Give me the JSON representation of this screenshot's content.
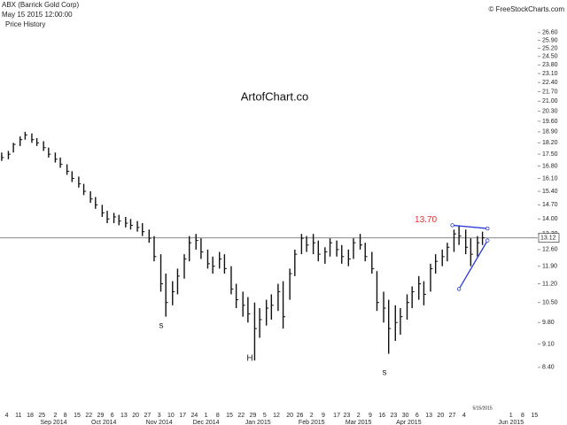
{
  "chart_data": {
    "type": "ohlc",
    "title": "ABX (Barrick Gold Corp)",
    "subtitle": "May 15 2015 12:00:00",
    "panel_label": "Price History",
    "copyright": "© FreeStockCharts.com",
    "watermark": "ArtofChart.co",
    "date_label": "5/15/2015",
    "color": "#111111",
    "log_scale": true,
    "x": [
      "2014-08-01",
      "2014-08-05",
      "2014-08-08",
      "2014-08-12",
      "2014-08-15",
      "2014-08-19",
      "2014-08-22",
      "2014-08-26",
      "2014-08-29",
      "2014-09-02",
      "2014-09-05",
      "2014-09-09",
      "2014-09-12",
      "2014-09-16",
      "2014-09-19",
      "2014-09-23",
      "2014-09-26",
      "2014-09-30",
      "2014-10-03",
      "2014-10-07",
      "2014-10-10",
      "2014-10-14",
      "2014-10-17",
      "2014-10-21",
      "2014-10-24",
      "2014-10-28",
      "2014-10-31",
      "2014-11-04",
      "2014-11-07",
      "2014-11-11",
      "2014-11-14",
      "2014-11-18",
      "2014-11-21",
      "2014-11-25",
      "2014-11-28",
      "2014-12-02",
      "2014-12-05",
      "2014-12-09",
      "2014-12-12",
      "2014-12-16",
      "2014-12-19",
      "2014-12-23",
      "2014-12-26",
      "2014-12-30",
      "2015-01-02",
      "2015-01-06",
      "2015-01-09",
      "2015-01-13",
      "2015-01-16",
      "2015-01-20",
      "2015-01-23",
      "2015-01-27",
      "2015-01-30",
      "2015-02-03",
      "2015-02-06",
      "2015-02-10",
      "2015-02-13",
      "2015-02-17",
      "2015-02-20",
      "2015-02-24",
      "2015-02-27",
      "2015-03-03",
      "2015-03-06",
      "2015-03-10",
      "2015-03-13",
      "2015-03-17",
      "2015-03-20",
      "2015-03-24",
      "2015-03-27",
      "2015-03-31",
      "2015-04-03",
      "2015-04-07",
      "2015-04-10",
      "2015-04-14",
      "2015-04-17",
      "2015-04-21",
      "2015-04-24",
      "2015-04-28",
      "2015-05-01",
      "2015-05-05",
      "2015-05-08",
      "2015-05-12",
      "2015-05-15"
    ],
    "high": [
      17.6,
      17.7,
      18.2,
      18.6,
      18.9,
      18.8,
      18.5,
      18.3,
      17.9,
      17.6,
      17.3,
      16.9,
      16.5,
      16.2,
      15.8,
      15.4,
      15.1,
      14.7,
      14.4,
      14.3,
      14.2,
      14.1,
      14.0,
      13.9,
      13.8,
      13.5,
      13.2,
      12.4,
      11.6,
      11.3,
      11.8,
      12.4,
      13.2,
      13.3,
      13.1,
      12.6,
      12.3,
      12.5,
      12.4,
      11.9,
      11.2,
      10.9,
      10.7,
      10.5,
      10.3,
      10.6,
      10.8,
      11.2,
      11.3,
      11.8,
      12.6,
      13.3,
      13.2,
      13.3,
      13.0,
      12.7,
      13.1,
      13.0,
      12.8,
      12.6,
      13.1,
      13.3,
      12.9,
      12.5,
      11.7,
      10.9,
      10.6,
      10.4,
      10.3,
      10.8,
      11.1,
      11.5,
      11.3,
      12.0,
      12.4,
      12.6,
      12.9,
      13.5,
      13.7,
      13.5,
      13.1,
      13.2,
      13.4
    ],
    "low": [
      17.1,
      17.2,
      17.6,
      18.0,
      18.4,
      18.2,
      18.0,
      17.7,
      17.3,
      17.0,
      16.7,
      16.3,
      15.9,
      15.6,
      15.2,
      14.8,
      14.5,
      14.1,
      13.8,
      13.8,
      13.7,
      13.6,
      13.5,
      13.4,
      13.2,
      12.9,
      12.1,
      10.9,
      10.0,
      10.4,
      10.8,
      11.4,
      12.1,
      12.6,
      12.2,
      11.8,
      11.6,
      11.8,
      11.6,
      10.8,
      10.3,
      10.0,
      9.8,
      8.6,
      9.3,
      9.7,
      9.9,
      10.2,
      9.6,
      10.6,
      11.5,
      12.4,
      12.5,
      12.4,
      12.1,
      12.0,
      12.3,
      12.3,
      12.0,
      11.9,
      12.2,
      12.6,
      12.1,
      11.6,
      10.2,
      9.8,
      8.8,
      9.2,
      9.4,
      9.9,
      10.3,
      10.6,
      10.4,
      10.9,
      11.6,
      11.9,
      12.1,
      12.5,
      12.8,
      12.4,
      11.9,
      12.3,
      12.8
    ],
    "close": [
      17.3,
      17.5,
      18.1,
      18.4,
      18.7,
      18.4,
      18.2,
      17.9,
      17.5,
      17.2,
      16.9,
      16.5,
      16.1,
      15.8,
      15.4,
      15.0,
      14.7,
      14.3,
      14.0,
      14.1,
      13.9,
      13.8,
      13.7,
      13.6,
      13.4,
      13.1,
      12.3,
      11.2,
      10.5,
      10.9,
      11.5,
      12.2,
      12.9,
      13.0,
      12.5,
      12.0,
      11.9,
      12.2,
      11.8,
      11.0,
      10.6,
      10.4,
      10.1,
      9.6,
      9.9,
      10.3,
      10.4,
      10.9,
      10.0,
      11.6,
      12.4,
      13.1,
      12.8,
      12.9,
      12.4,
      12.5,
      12.9,
      12.6,
      12.3,
      12.2,
      12.9,
      12.8,
      12.3,
      11.8,
      10.5,
      10.3,
      9.6,
      9.8,
      10.0,
      10.5,
      10.9,
      11.2,
      10.8,
      11.8,
      12.1,
      12.3,
      12.7,
      13.3,
      13.2,
      12.7,
      12.4,
      12.9,
      13.12
    ],
    "last_price": 13.12,
    "last_price_color": "#888888",
    "xlim": [
      "2014-07-31",
      "2015-06-17"
    ],
    "ylim": [
      7.1,
      28.0
    ],
    "yticks": [
      {
        "value": 8.4,
        "label": "8.40"
      },
      {
        "value": 9.1,
        "label": "9.10"
      },
      {
        "value": 9.8,
        "label": "9.80"
      },
      {
        "value": 10.5,
        "label": "10.50"
      },
      {
        "value": 11.2,
        "label": "11.20"
      },
      {
        "value": 11.9,
        "label": "11.90"
      },
      {
        "value": 12.6,
        "label": "12.60"
      },
      {
        "value": 13.3,
        "label": "13.30"
      },
      {
        "value": 14.0,
        "label": "14.00"
      },
      {
        "value": 14.7,
        "label": "14.70"
      },
      {
        "value": 15.4,
        "label": "15.40"
      },
      {
        "value": 16.1,
        "label": "16.10"
      },
      {
        "value": 16.8,
        "label": "16.80"
      },
      {
        "value": 17.5,
        "label": "17.50"
      },
      {
        "value": 18.2,
        "label": "18.20"
      },
      {
        "value": 18.9,
        "label": "18.90"
      },
      {
        "value": 19.6,
        "label": "19.60"
      },
      {
        "value": 20.3,
        "label": "20.30"
      },
      {
        "value": 21.0,
        "label": "21.00"
      },
      {
        "value": 21.7,
        "label": "21.70"
      },
      {
        "value": 22.4,
        "label": "22.40"
      },
      {
        "value": 23.1,
        "label": "23.10"
      },
      {
        "value": 23.8,
        "label": "23.80"
      },
      {
        "value": 24.5,
        "label": "24.50"
      },
      {
        "value": 25.2,
        "label": "25.20"
      },
      {
        "value": 25.9,
        "label": "25.90"
      },
      {
        "value": 26.6,
        "label": "26.60"
      }
    ],
    "xticks": [
      {
        "value": "2014-08-04",
        "label": "4"
      },
      {
        "value": "2014-08-11",
        "label": "11"
      },
      {
        "value": "2014-08-18",
        "label": "18"
      },
      {
        "value": "2014-08-25",
        "label": "25"
      },
      {
        "value": "2014-09-02",
        "label": "2"
      },
      {
        "value": "2014-09-08",
        "label": "8"
      },
      {
        "value": "2014-09-15",
        "label": "15"
      },
      {
        "value": "2014-09-22",
        "label": "22"
      },
      {
        "value": "2014-09-29",
        "label": "29"
      },
      {
        "value": "2014-10-06",
        "label": "6"
      },
      {
        "value": "2014-10-13",
        "label": "13"
      },
      {
        "value": "2014-10-20",
        "label": "20"
      },
      {
        "value": "2014-10-27",
        "label": "27"
      },
      {
        "value": "2014-11-03",
        "label": "3"
      },
      {
        "value": "2014-11-10",
        "label": "10"
      },
      {
        "value": "2014-11-17",
        "label": "17"
      },
      {
        "value": "2014-11-24",
        "label": "24"
      },
      {
        "value": "2014-12-01",
        "label": "1"
      },
      {
        "value": "2014-12-08",
        "label": "8"
      },
      {
        "value": "2014-12-15",
        "label": "15"
      },
      {
        "value": "2014-12-22",
        "label": "22"
      },
      {
        "value": "2014-12-29",
        "label": "29"
      },
      {
        "value": "2015-01-05",
        "label": "5"
      },
      {
        "value": "2015-01-12",
        "label": "12"
      },
      {
        "value": "2015-01-20",
        "label": "20"
      },
      {
        "value": "2015-01-26",
        "label": "26"
      },
      {
        "value": "2015-02-02",
        "label": "2"
      },
      {
        "value": "2015-02-09",
        "label": "9"
      },
      {
        "value": "2015-02-17",
        "label": "17"
      },
      {
        "value": "2015-02-23",
        "label": "23"
      },
      {
        "value": "2015-03-02",
        "label": "2"
      },
      {
        "value": "2015-03-09",
        "label": "9"
      },
      {
        "value": "2015-03-16",
        "label": "16"
      },
      {
        "value": "2015-03-23",
        "label": "23"
      },
      {
        "value": "2015-03-30",
        "label": "30"
      },
      {
        "value": "2015-04-06",
        "label": "6"
      },
      {
        "value": "2015-04-13",
        "label": "13"
      },
      {
        "value": "2015-04-20",
        "label": "20"
      },
      {
        "value": "2015-04-27",
        "label": "27"
      },
      {
        "value": "2015-05-04",
        "label": "4"
      },
      {
        "value": "2015-06-01",
        "label": "1"
      },
      {
        "value": "2015-06-08",
        "label": "8"
      },
      {
        "value": "2015-06-15",
        "label": "15"
      }
    ],
    "month_ticks": [
      {
        "value": "2014-09-01",
        "label": "Sep 2014"
      },
      {
        "value": "2014-10-01",
        "label": "Oct 2014"
      },
      {
        "value": "2014-11-03",
        "label": "Nov 2014"
      },
      {
        "value": "2014-12-01",
        "label": "Dec 2014"
      },
      {
        "value": "2015-01-01",
        "label": "Jan 2015"
      },
      {
        "value": "2015-02-02",
        "label": "Feb 2015"
      },
      {
        "value": "2015-03-02",
        "label": "Mar 2015"
      },
      {
        "value": "2015-04-01",
        "label": "Apr 2015"
      },
      {
        "value": "2015-06-01",
        "label": "Jun 2015"
      }
    ],
    "pattern_labels": [
      "s",
      "H",
      "s"
    ],
    "trendline_color": "#2b3bd6",
    "annotation_color": "#e03030",
    "trendlines": [
      {
        "x": [
          "2015-04-27",
          "2015-05-18"
        ],
        "y": [
          13.7,
          13.55
        ],
        "value_labels": [
          "13.70",
          null
        ]
      },
      {
        "x": [
          "2015-05-01",
          "2015-05-18"
        ],
        "y": [
          11.0,
          13.0
        ]
      }
    ]
  }
}
